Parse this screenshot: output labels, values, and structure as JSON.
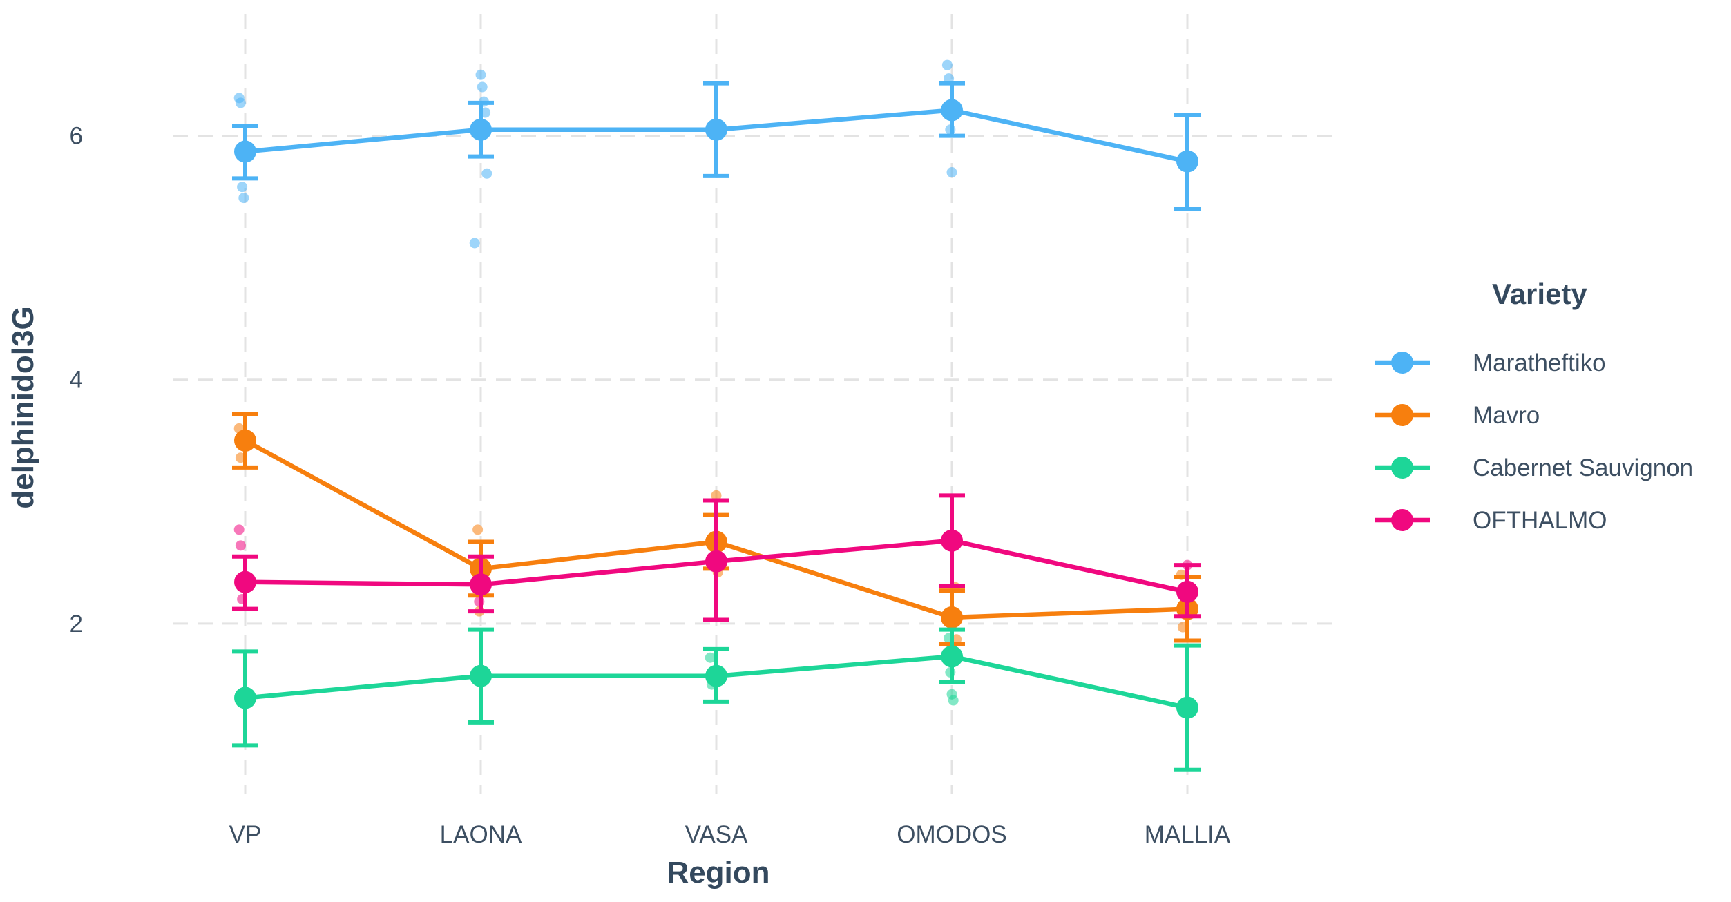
{
  "chart_data": {
    "type": "line",
    "xlabel": "Region",
    "ylabel": "delphinidol3G",
    "categories": [
      "VP",
      "LAONA",
      "VASA",
      "OMODOS",
      "MALLIA"
    ],
    "ylim": [
      0.6,
      7.0
    ],
    "y_ticks": [
      2,
      4,
      6
    ],
    "grid": true,
    "legend": {
      "title": "Variety",
      "position": "right"
    },
    "series": [
      {
        "name": "Maratheftiko",
        "color": "#4db3f5",
        "values": [
          5.87,
          6.05,
          6.05,
          6.21,
          5.79
        ],
        "error_low": [
          5.65,
          5.83,
          5.67,
          6.0,
          5.4
        ],
        "error_high": [
          6.08,
          6.27,
          6.43,
          6.43,
          6.17
        ],
        "points": [
          {
            "x": "VP",
            "y": 6.31
          },
          {
            "x": "VP",
            "y": 6.27
          },
          {
            "x": "VP",
            "y": 5.58
          },
          {
            "x": "VP",
            "y": 5.49
          },
          {
            "x": "LAONA",
            "y": 6.5
          },
          {
            "x": "LAONA",
            "y": 6.4
          },
          {
            "x": "LAONA",
            "y": 6.28
          },
          {
            "x": "LAONA",
            "y": 6.19
          },
          {
            "x": "LAONA",
            "y": 5.69
          },
          {
            "x": "LAONA",
            "y": 5.12
          },
          {
            "x": "OMODOS",
            "y": 6.58
          },
          {
            "x": "OMODOS",
            "y": 6.47
          },
          {
            "x": "OMODOS",
            "y": 6.05
          },
          {
            "x": "OMODOS",
            "y": 5.7
          }
        ]
      },
      {
        "name": "Mavro",
        "color": "#f77f0e",
        "values": [
          3.5,
          2.45,
          2.67,
          2.05,
          2.12
        ],
        "error_low": [
          3.28,
          2.23,
          2.45,
          1.83,
          1.86
        ],
        "error_high": [
          3.72,
          2.67,
          2.89,
          2.27,
          2.38
        ],
        "points": [
          {
            "x": "VP",
            "y": 3.6
          },
          {
            "x": "VP",
            "y": 3.36
          },
          {
            "x": "LAONA",
            "y": 2.77
          },
          {
            "x": "LAONA",
            "y": 2.1
          },
          {
            "x": "VASA",
            "y": 3.05
          },
          {
            "x": "VASA",
            "y": 2.42
          },
          {
            "x": "OMODOS",
            "y": 2.3
          },
          {
            "x": "OMODOS",
            "y": 1.87
          },
          {
            "x": "OMODOS",
            "y": 1.72
          },
          {
            "x": "MALLIA",
            "y": 2.4
          },
          {
            "x": "MALLIA",
            "y": 1.97
          }
        ]
      },
      {
        "name": "Cabernet Sauvignon",
        "color": "#1dd698",
        "values": [
          1.39,
          1.57,
          1.57,
          1.73,
          1.31
        ],
        "error_low": [
          1.0,
          1.19,
          1.36,
          1.52,
          0.8
        ],
        "error_high": [
          1.77,
          1.95,
          1.79,
          1.95,
          1.82
        ],
        "points": [
          {
            "x": "VASA",
            "y": 1.72
          },
          {
            "x": "VASA",
            "y": 1.5
          },
          {
            "x": "OMODOS",
            "y": 1.88
          },
          {
            "x": "OMODOS",
            "y": 1.6
          },
          {
            "x": "OMODOS",
            "y": 1.42
          },
          {
            "x": "OMODOS",
            "y": 1.37
          }
        ]
      },
      {
        "name": "OFTHALMO",
        "color": "#f0087f",
        "values": [
          2.34,
          2.32,
          2.51,
          2.68,
          2.26
        ],
        "error_low": [
          2.12,
          2.1,
          2.03,
          2.31,
          2.06
        ],
        "error_high": [
          2.55,
          2.55,
          3.01,
          3.05,
          2.48
        ],
        "points": [
          {
            "x": "VP",
            "y": 2.77
          },
          {
            "x": "VP",
            "y": 2.64
          },
          {
            "x": "VP",
            "y": 2.2
          },
          {
            "x": "LAONA",
            "y": 2.18
          },
          {
            "x": "MALLIA",
            "y": 2.48
          },
          {
            "x": "MALLIA",
            "y": 2.11
          }
        ]
      }
    ]
  }
}
